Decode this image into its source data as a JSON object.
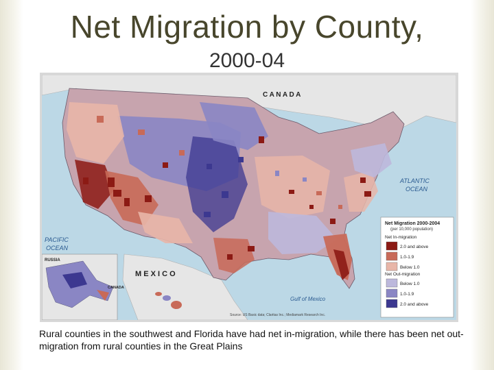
{
  "title": "Net Migration by County,",
  "subtitle": "2000-04",
  "caption": "Rural counties in the southwest and Florida have had net in-migration, while there has been net out-migration from rural counties in the Great Plains",
  "map": {
    "labels": {
      "canada": "C A N A D A",
      "mexico": "M E X I C O",
      "pacific": [
        "PACIFIC",
        "OCEAN"
      ],
      "atlantic": [
        "ATLANTIC",
        "OCEAN"
      ],
      "gulf": "Gulf of Mexico",
      "russia": "RUSSIA",
      "inset_canada": "CANADA"
    },
    "source": "Source: US Basic data; Claritas Inc.; Mediamark Research Inc.",
    "legend": {
      "title": "Net Migration 2000-2004",
      "subtitle": "(per 10,000 population)",
      "in_heading": "Net In-migration",
      "out_heading": "Net Out-migration",
      "in_items": [
        {
          "label": "2.0 and above",
          "color": "#8c1a14"
        },
        {
          "label": "1.0-1.9",
          "color": "#c86a58"
        },
        {
          "label": "Below 1.0",
          "color": "#e8b6a8"
        }
      ],
      "out_items": [
        {
          "label": "Below 1.0",
          "color": "#bcb8dc"
        },
        {
          "label": "1.0-1.9",
          "color": "#8a86c4"
        },
        {
          "label": "2.0 and above",
          "color": "#3c3890"
        }
      ]
    },
    "colors": {
      "water": "#bcd8e6",
      "land_other": "#e6e6e6",
      "in_high": "#8c1a14",
      "in_mid": "#c86a58",
      "in_low": "#e8b6a8",
      "out_low": "#bcb8dc",
      "out_mid": "#8a86c4",
      "out_high": "#3c3890"
    }
  }
}
